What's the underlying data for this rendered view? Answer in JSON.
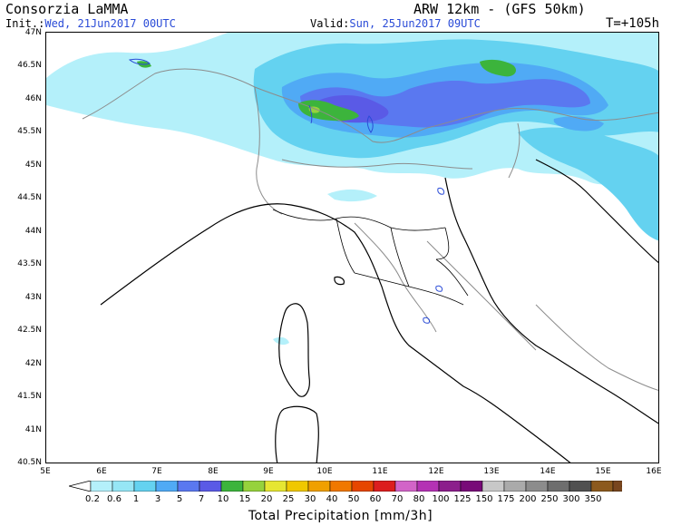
{
  "header": {
    "organization": "Consorzia LaMMA",
    "model": "ARW 12km - (GFS 50km)",
    "init_label": "Init.:",
    "init_value": "Wed, 21Jun2017 00UTC",
    "valid_label": "Valid:",
    "valid_value": "Sun, 25Jun2017 09UTC",
    "forecast_hour": "T=+105h"
  },
  "map": {
    "latitude_labels": [
      "47N",
      "46.5N",
      "46N",
      "45.5N",
      "45N",
      "44.5N",
      "44N",
      "43.5N",
      "43N",
      "42.5N",
      "42N",
      "41.5N",
      "41N",
      "40.5N"
    ],
    "longitude_labels": [
      "5E",
      "6E",
      "7E",
      "8E",
      "9E",
      "10E",
      "11E",
      "12E",
      "13E",
      "14E",
      "15E",
      "16E"
    ],
    "precip_colors": [
      "#b4f0fa",
      "#96e6f5",
      "#64d2f0",
      "#50aaf5",
      "#5a78f0",
      "#5a5ae6",
      "#3cb43c",
      "#96d23c",
      "#e6e632",
      "#f0c800",
      "#f0a000",
      "#f07800",
      "#e64600",
      "#dc1e1e",
      "#d264c8",
      "#b432b4",
      "#8c1e8c",
      "#780a78",
      "#c8c8c8",
      "#aaaaaa",
      "#8c8c8c",
      "#6e6e6e",
      "#505050",
      "#8c5a1e",
      "#78461e",
      "#643214",
      "#502814",
      "#3c1e0a"
    ]
  },
  "colorbar": {
    "labels": [
      "0.2",
      "0.6",
      "1",
      "3",
      "5",
      "7",
      "10",
      "15",
      "20",
      "25",
      "30",
      "40",
      "50",
      "60",
      "70",
      "80",
      "100",
      "125",
      "150",
      "175",
      "200",
      "250",
      "300",
      "350"
    ],
    "title": "Total Precipitation [mm/3h]"
  }
}
